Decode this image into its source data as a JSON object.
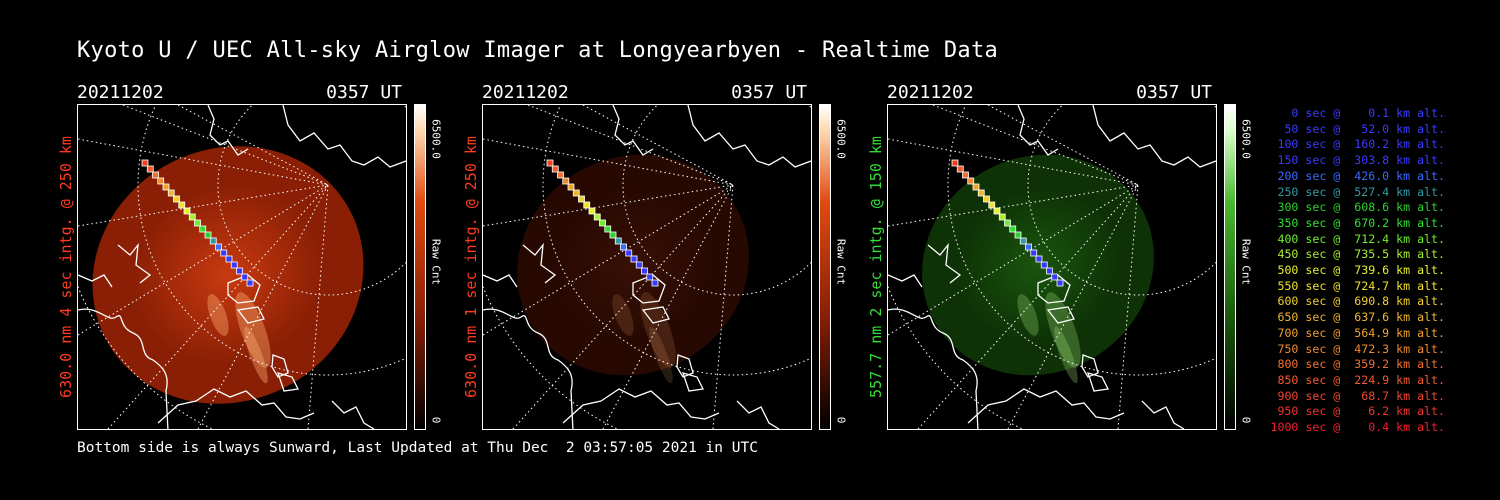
{
  "title": "Kyoto U / UEC All-sky Airglow Imager at Longyearbyen - Realtime Data",
  "panels": [
    {
      "date": "20211202",
      "time": "0357 UT",
      "ylabel": "630.0 nm 4 sec intg. @ 250 km",
      "ylabel_color": "#ff3b1f",
      "cbar_max": "6500.0",
      "cbar_unit": "Raw Cnt",
      "cbar_min": "0",
      "palette": "red",
      "brightness": 1.0
    },
    {
      "date": "20211202",
      "time": "0357 UT",
      "ylabel": "630.0 nm 1 sec intg. @ 250 km",
      "ylabel_color": "#ff3b1f",
      "cbar_max": "6500.0",
      "cbar_unit": "Raw Cnt",
      "cbar_min": "0",
      "palette": "red",
      "brightness": 0.28
    },
    {
      "date": "20211202",
      "time": "0357 UT",
      "ylabel": "557.7 nm 2 sec intg. @ 150 km",
      "ylabel_color": "#33dd33",
      "cbar_max": "6500.0",
      "cbar_unit": "Raw Cnt",
      "cbar_min": "0",
      "palette": "green",
      "brightness": 0.55
    }
  ],
  "legend": [
    {
      "text": "   0 sec @    0.1 km alt.",
      "color": "#3a3aff"
    },
    {
      "text": "  50 sec @   52.0 km alt.",
      "color": "#3a3aff"
    },
    {
      "text": " 100 sec @  160.2 km alt.",
      "color": "#3a3aff"
    },
    {
      "text": " 150 sec @  303.8 km alt.",
      "color": "#3a3aff"
    },
    {
      "text": " 200 sec @  426.0 km alt.",
      "color": "#3a6aff"
    },
    {
      "text": " 250 sec @  527.4 km alt.",
      "color": "#2f9aa6"
    },
    {
      "text": " 300 sec @  608.6 km alt.",
      "color": "#2fd02f"
    },
    {
      "text": " 350 sec @  670.2 km alt.",
      "color": "#2fe02f"
    },
    {
      "text": " 400 sec @  712.4 km alt.",
      "color": "#6fee2f"
    },
    {
      "text": " 450 sec @  735.5 km alt.",
      "color": "#aaf02f"
    },
    {
      "text": " 500 sec @  739.6 km alt.",
      "color": "#e5f02f"
    },
    {
      "text": " 550 sec @  724.7 km alt.",
      "color": "#f0e02f"
    },
    {
      "text": " 600 sec @  690.8 km alt.",
      "color": "#f0d02f"
    },
    {
      "text": " 650 sec @  637.6 km alt.",
      "color": "#f0b62f"
    },
    {
      "text": " 700 sec @  564.9 km alt.",
      "color": "#f0a02f"
    },
    {
      "text": " 750 sec @  472.3 km alt.",
      "color": "#f08a2f"
    },
    {
      "text": " 800 sec @  359.2 km alt.",
      "color": "#f0702f"
    },
    {
      "text": " 850 sec @  224.9 km alt.",
      "color": "#f05a2f"
    },
    {
      "text": " 900 sec @   68.7 km alt.",
      "color": "#f0452f"
    },
    {
      "text": " 950 sec @    6.2 km alt.",
      "color": "#f0352f"
    },
    {
      "text": "1000 sec @    0.4 km alt.",
      "color": "#f0202f"
    }
  ],
  "footer": "Bottom side is always Sunward, Last Updated at Thu Dec  2 03:57:05 2021 in UTC"
}
